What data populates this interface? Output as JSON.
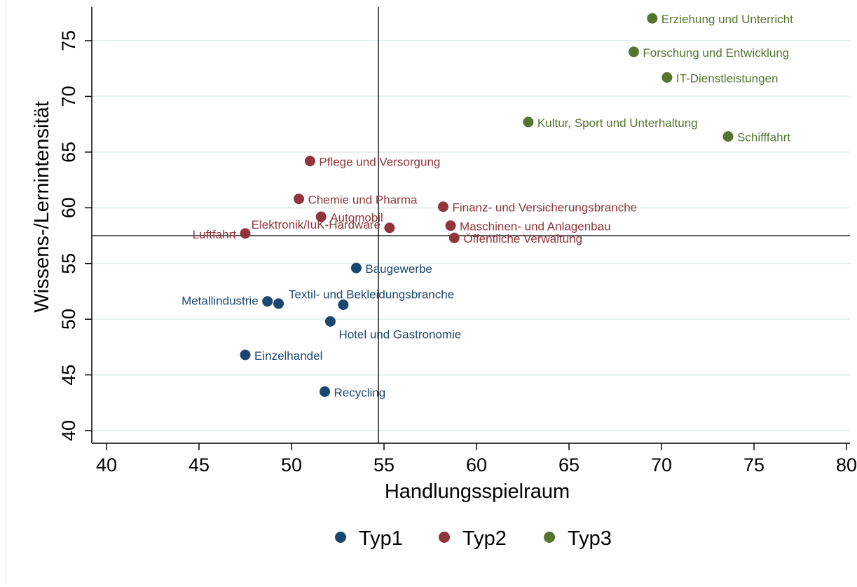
{
  "chart_data": {
    "type": "scatter",
    "title": "",
    "xlabel": "Handlungsspielraum",
    "ylabel": "Wissens-/Lernintensität",
    "xlim": [
      40,
      80
    ],
    "ylim": [
      40,
      77
    ],
    "xticks": [
      40,
      45,
      50,
      55,
      60,
      65,
      70,
      75,
      80
    ],
    "yticks": [
      40,
      45,
      50,
      55,
      60,
      65,
      70,
      75
    ],
    "grid": "horizontal",
    "reference_lines": {
      "x": 54.7,
      "y": 57.5
    },
    "legend_position": "bottom",
    "series": [
      {
        "name": "Typ1",
        "color": "#1a476f",
        "points": [
          {
            "label": "Baugewerbe",
            "x": 53.5,
            "y": 54.6
          },
          {
            "label": "Metallindustrie",
            "x": 48.7,
            "y": 51.6
          },
          {
            "label": "",
            "x": 49.3,
            "y": 51.4
          },
          {
            "label": "Textil- und Bekleidungsbranche",
            "x": 52.8,
            "y": 51.3
          },
          {
            "label": "Hotel und Gastronomie",
            "x": 52.1,
            "y": 49.8
          },
          {
            "label": "Einzelhandel",
            "x": 47.5,
            "y": 46.8
          },
          {
            "label": "Recycling",
            "x": 51.8,
            "y": 43.5
          }
        ]
      },
      {
        "name": "Typ2",
        "color": "#90353b",
        "points": [
          {
            "label": "Pflege und Versorgung",
            "x": 51.0,
            "y": 64.2
          },
          {
            "label": "Chemie und Pharma",
            "x": 50.4,
            "y": 60.8
          },
          {
            "label": "Automobil",
            "x": 51.6,
            "y": 59.2
          },
          {
            "label": "Elektronik/IuK-Hardware",
            "x": 55.3,
            "y": 58.2
          },
          {
            "label": "Luftfahrt",
            "x": 47.5,
            "y": 57.7
          },
          {
            "label": "Finanz- und Versicherungsbranche",
            "x": 58.2,
            "y": 60.1
          },
          {
            "label": "Maschinen- und Anlagenbau",
            "x": 58.6,
            "y": 58.4
          },
          {
            "label": "Öffentliche Verwaltung",
            "x": 58.8,
            "y": 57.3
          }
        ]
      },
      {
        "name": "Typ3",
        "color": "#55752f",
        "points": [
          {
            "label": "Erziehung und Unterricht",
            "x": 69.5,
            "y": 77.0
          },
          {
            "label": "Forschung und Entwicklung",
            "x": 68.5,
            "y": 74.0
          },
          {
            "label": "IT-Dienstleistungen",
            "x": 70.3,
            "y": 71.7
          },
          {
            "label": "Kultur, Sport und Unterhaltung",
            "x": 62.8,
            "y": 67.7
          },
          {
            "label": "Schifffahrt",
            "x": 73.6,
            "y": 66.4
          }
        ]
      }
    ]
  }
}
